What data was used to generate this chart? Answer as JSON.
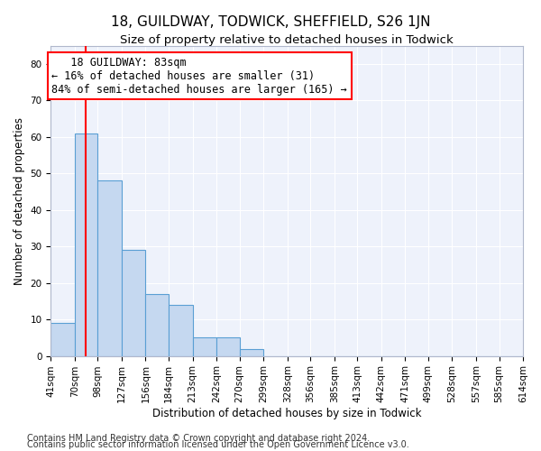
{
  "title": "18, GUILDWAY, TODWICK, SHEFFIELD, S26 1JN",
  "subtitle": "Size of property relative to detached houses in Todwick",
  "xlabel": "Distribution of detached houses by size in Todwick",
  "ylabel": "Number of detached properties",
  "bar_color": "#c5d8f0",
  "bar_edge_color": "#5a9fd4",
  "red_line_x": 83,
  "annotation_line1": "18 GUILDWAY: 83sqm",
  "annotation_line2": "← 16% of detached houses are smaller (31)",
  "annotation_line3": "84% of semi-detached houses are larger (165) →",
  "bin_edges": [
    41,
    70,
    98,
    127,
    156,
    184,
    213,
    242,
    270,
    299,
    328,
    356,
    385,
    413,
    442,
    471,
    499,
    528,
    557,
    585,
    614
  ],
  "bar_heights": [
    9,
    61,
    48,
    29,
    17,
    14,
    5,
    5,
    2,
    0,
    0,
    0,
    0,
    0,
    0,
    0,
    0,
    0,
    0,
    0
  ],
  "ylim": [
    0,
    85
  ],
  "yticks": [
    0,
    10,
    20,
    30,
    40,
    50,
    60,
    70,
    80
  ],
  "footnote1": "Contains HM Land Registry data © Crown copyright and database right 2024.",
  "footnote2": "Contains public sector information licensed under the Open Government Licence v3.0.",
  "background_color": "#eef2fb",
  "grid_color": "#ffffff",
  "title_fontsize": 11,
  "subtitle_fontsize": 9.5,
  "axis_label_fontsize": 8.5,
  "tick_fontsize": 7.5,
  "annotation_fontsize": 8.5,
  "footnote_fontsize": 7
}
